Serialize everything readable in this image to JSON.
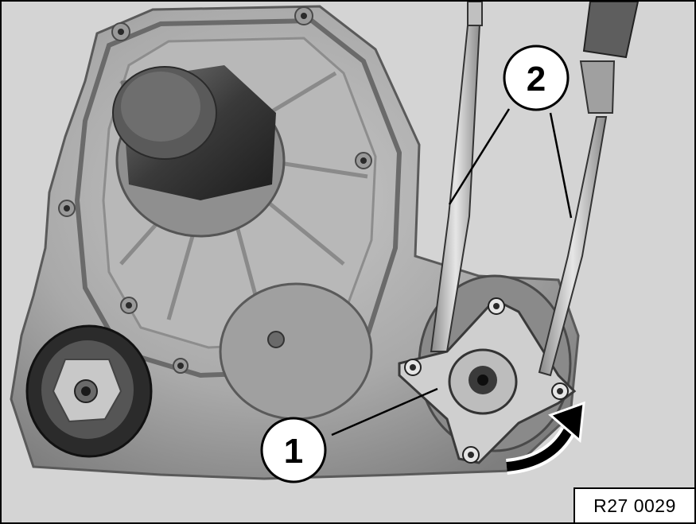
{
  "image": {
    "subject": "transfer-case-housing",
    "callouts": [
      {
        "number": "1"
      },
      {
        "number": "2"
      }
    ],
    "reference_code": "R27 0029",
    "arrow_icon": "curved-arrow-icon"
  }
}
